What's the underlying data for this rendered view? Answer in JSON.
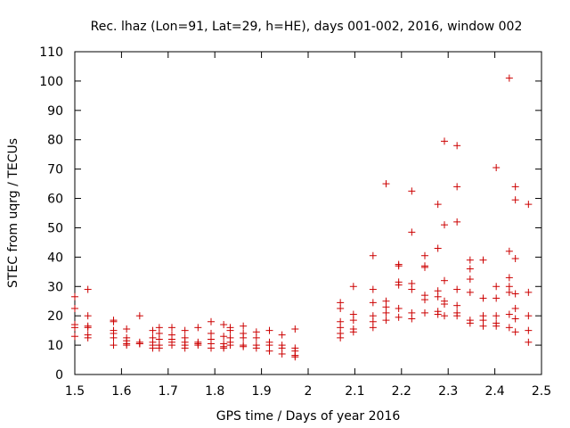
{
  "chart_data": {
    "type": "scatter",
    "title": "Rec. lhaz (Lon=91, Lat=29, h=HE), days 001-002, 2016, window 002",
    "xlabel": "GPS time / Days of year 2016",
    "ylabel": "STEC from uqrg / TECUs",
    "xlim": [
      1.5,
      2.5
    ],
    "ylim": [
      0,
      110
    ],
    "xticks": [
      1.5,
      1.6,
      1.7,
      1.8,
      1.9,
      2,
      2.1,
      2.2,
      2.3,
      2.4,
      2.5
    ],
    "xtick_labels": [
      "1.5",
      "1.6",
      "1.7",
      "1.8",
      "1.9",
      "2",
      "2.1",
      "2.2",
      "2.3",
      "2.4",
      "2.5"
    ],
    "yticks": [
      0,
      10,
      20,
      30,
      40,
      50,
      60,
      70,
      80,
      90,
      100,
      110
    ],
    "ytick_labels": [
      "0",
      "10",
      "20",
      "30",
      "40",
      "50",
      "60",
      "70",
      "80",
      "90",
      "100",
      "110"
    ],
    "grid": false,
    "legend": "none",
    "marker": "plus",
    "marker_color": "#cc0000",
    "points": [
      [
        1.5,
        26.5
      ],
      [
        1.5,
        22.5
      ],
      [
        1.5,
        17.0
      ],
      [
        1.5,
        16.0
      ],
      [
        1.5,
        13.0
      ],
      [
        1.528,
        29.0
      ],
      [
        1.528,
        20.0
      ],
      [
        1.528,
        16.5
      ],
      [
        1.528,
        16.0
      ],
      [
        1.528,
        13.5
      ],
      [
        1.528,
        12.5
      ],
      [
        1.583,
        18.5
      ],
      [
        1.583,
        18.0
      ],
      [
        1.583,
        15.0
      ],
      [
        1.583,
        14.0
      ],
      [
        1.583,
        12.5
      ],
      [
        1.583,
        10.0
      ],
      [
        1.611,
        15.5
      ],
      [
        1.611,
        12.5
      ],
      [
        1.611,
        11.5
      ],
      [
        1.611,
        10.5
      ],
      [
        1.611,
        10.0
      ],
      [
        1.639,
        20.0
      ],
      [
        1.639,
        11.0
      ],
      [
        1.639,
        10.5
      ],
      [
        1.639,
        10.5
      ],
      [
        1.667,
        15.0
      ],
      [
        1.667,
        12.5
      ],
      [
        1.667,
        11.0
      ],
      [
        1.667,
        10.0
      ],
      [
        1.667,
        9.0
      ],
      [
        1.681,
        16.0
      ],
      [
        1.681,
        14.0
      ],
      [
        1.681,
        12.0
      ],
      [
        1.681,
        10.0
      ],
      [
        1.681,
        9.0
      ],
      [
        1.708,
        16.0
      ],
      [
        1.708,
        13.5
      ],
      [
        1.708,
        12.0
      ],
      [
        1.708,
        11.0
      ],
      [
        1.708,
        10.0
      ],
      [
        1.736,
        15.0
      ],
      [
        1.736,
        12.5
      ],
      [
        1.736,
        11.0
      ],
      [
        1.736,
        10.0
      ],
      [
        1.736,
        9.0
      ],
      [
        1.764,
        16.0
      ],
      [
        1.764,
        11.0
      ],
      [
        1.764,
        10.5
      ],
      [
        1.764,
        10.0
      ],
      [
        1.792,
        18.0
      ],
      [
        1.792,
        14.0
      ],
      [
        1.792,
        12.0
      ],
      [
        1.792,
        10.5
      ],
      [
        1.792,
        9.0
      ],
      [
        1.819,
        17.0
      ],
      [
        1.819,
        13.0
      ],
      [
        1.819,
        10.5
      ],
      [
        1.819,
        9.5
      ],
      [
        1.819,
        9.0
      ],
      [
        1.833,
        16.0
      ],
      [
        1.833,
        15.0
      ],
      [
        1.833,
        12.5
      ],
      [
        1.833,
        11.0
      ],
      [
        1.833,
        10.0
      ],
      [
        1.861,
        16.5
      ],
      [
        1.861,
        14.0
      ],
      [
        1.861,
        12.5
      ],
      [
        1.861,
        10.0
      ],
      [
        1.861,
        9.5
      ],
      [
        1.889,
        14.5
      ],
      [
        1.889,
        12.5
      ],
      [
        1.889,
        10.0
      ],
      [
        1.889,
        9.0
      ],
      [
        1.917,
        15.0
      ],
      [
        1.917,
        11.0
      ],
      [
        1.917,
        10.0
      ],
      [
        1.917,
        8.0
      ],
      [
        1.944,
        13.5
      ],
      [
        1.944,
        10.0
      ],
      [
        1.944,
        9.0
      ],
      [
        1.944,
        7.0
      ],
      [
        1.972,
        15.5
      ],
      [
        1.972,
        9.0
      ],
      [
        1.972,
        8.0
      ],
      [
        1.972,
        6.5
      ],
      [
        1.972,
        6.0
      ],
      [
        2.069,
        24.5
      ],
      [
        2.069,
        22.5
      ],
      [
        2.069,
        18.0
      ],
      [
        2.069,
        16.0
      ],
      [
        2.069,
        14.0
      ],
      [
        2.069,
        12.5
      ],
      [
        2.097,
        30.0
      ],
      [
        2.097,
        20.5
      ],
      [
        2.097,
        18.5
      ],
      [
        2.097,
        15.5
      ],
      [
        2.097,
        14.5
      ],
      [
        2.139,
        40.5
      ],
      [
        2.139,
        29.0
      ],
      [
        2.139,
        24.5
      ],
      [
        2.139,
        20.0
      ],
      [
        2.139,
        18.0
      ],
      [
        2.139,
        16.0
      ],
      [
        2.167,
        65.0
      ],
      [
        2.167,
        25.0
      ],
      [
        2.167,
        23.0
      ],
      [
        2.167,
        21.0
      ],
      [
        2.167,
        18.5
      ],
      [
        2.194,
        37.5
      ],
      [
        2.194,
        37.0
      ],
      [
        2.194,
        31.5
      ],
      [
        2.194,
        30.5
      ],
      [
        2.194,
        22.5
      ],
      [
        2.194,
        19.5
      ],
      [
        2.222,
        62.5
      ],
      [
        2.222,
        48.5
      ],
      [
        2.222,
        31.0
      ],
      [
        2.222,
        29.0
      ],
      [
        2.222,
        21.0
      ],
      [
        2.222,
        19.0
      ],
      [
        2.25,
        40.5
      ],
      [
        2.25,
        37.0
      ],
      [
        2.25,
        36.5
      ],
      [
        2.25,
        27.0
      ],
      [
        2.25,
        25.5
      ],
      [
        2.25,
        21.0
      ],
      [
        2.278,
        58.0
      ],
      [
        2.278,
        43.0
      ],
      [
        2.278,
        28.5
      ],
      [
        2.278,
        26.5
      ],
      [
        2.278,
        21.5
      ],
      [
        2.278,
        20.5
      ],
      [
        2.292,
        79.5
      ],
      [
        2.292,
        51.0
      ],
      [
        2.292,
        32.0
      ],
      [
        2.292,
        25.0
      ],
      [
        2.292,
        24.0
      ],
      [
        2.292,
        20.0
      ],
      [
        2.319,
        78.0
      ],
      [
        2.319,
        64.0
      ],
      [
        2.319,
        52.0
      ],
      [
        2.319,
        29.0
      ],
      [
        2.319,
        23.5
      ],
      [
        2.319,
        21.0
      ],
      [
        2.319,
        20.0
      ],
      [
        2.347,
        39.0
      ],
      [
        2.347,
        36.0
      ],
      [
        2.347,
        32.5
      ],
      [
        2.347,
        28.0
      ],
      [
        2.347,
        18.5
      ],
      [
        2.347,
        17.5
      ],
      [
        2.375,
        39.0
      ],
      [
        2.375,
        26.0
      ],
      [
        2.375,
        20.0
      ],
      [
        2.375,
        18.5
      ],
      [
        2.375,
        16.5
      ],
      [
        2.403,
        70.5
      ],
      [
        2.403,
        30.0
      ],
      [
        2.403,
        26.0
      ],
      [
        2.403,
        20.0
      ],
      [
        2.403,
        17.5
      ],
      [
        2.403,
        16.5
      ],
      [
        2.431,
        101.0
      ],
      [
        2.431,
        42.0
      ],
      [
        2.431,
        33.0
      ],
      [
        2.431,
        30.0
      ],
      [
        2.431,
        28.0
      ],
      [
        2.431,
        20.5
      ],
      [
        2.431,
        16.0
      ],
      [
        2.444,
        64.0
      ],
      [
        2.444,
        59.5
      ],
      [
        2.444,
        39.5
      ],
      [
        2.444,
        27.5
      ],
      [
        2.444,
        22.5
      ],
      [
        2.444,
        19.0
      ],
      [
        2.444,
        14.5
      ],
      [
        2.472,
        58.0
      ],
      [
        2.472,
        28.0
      ],
      [
        2.472,
        20.0
      ],
      [
        2.472,
        15.0
      ],
      [
        2.472,
        11.0
      ]
    ]
  }
}
